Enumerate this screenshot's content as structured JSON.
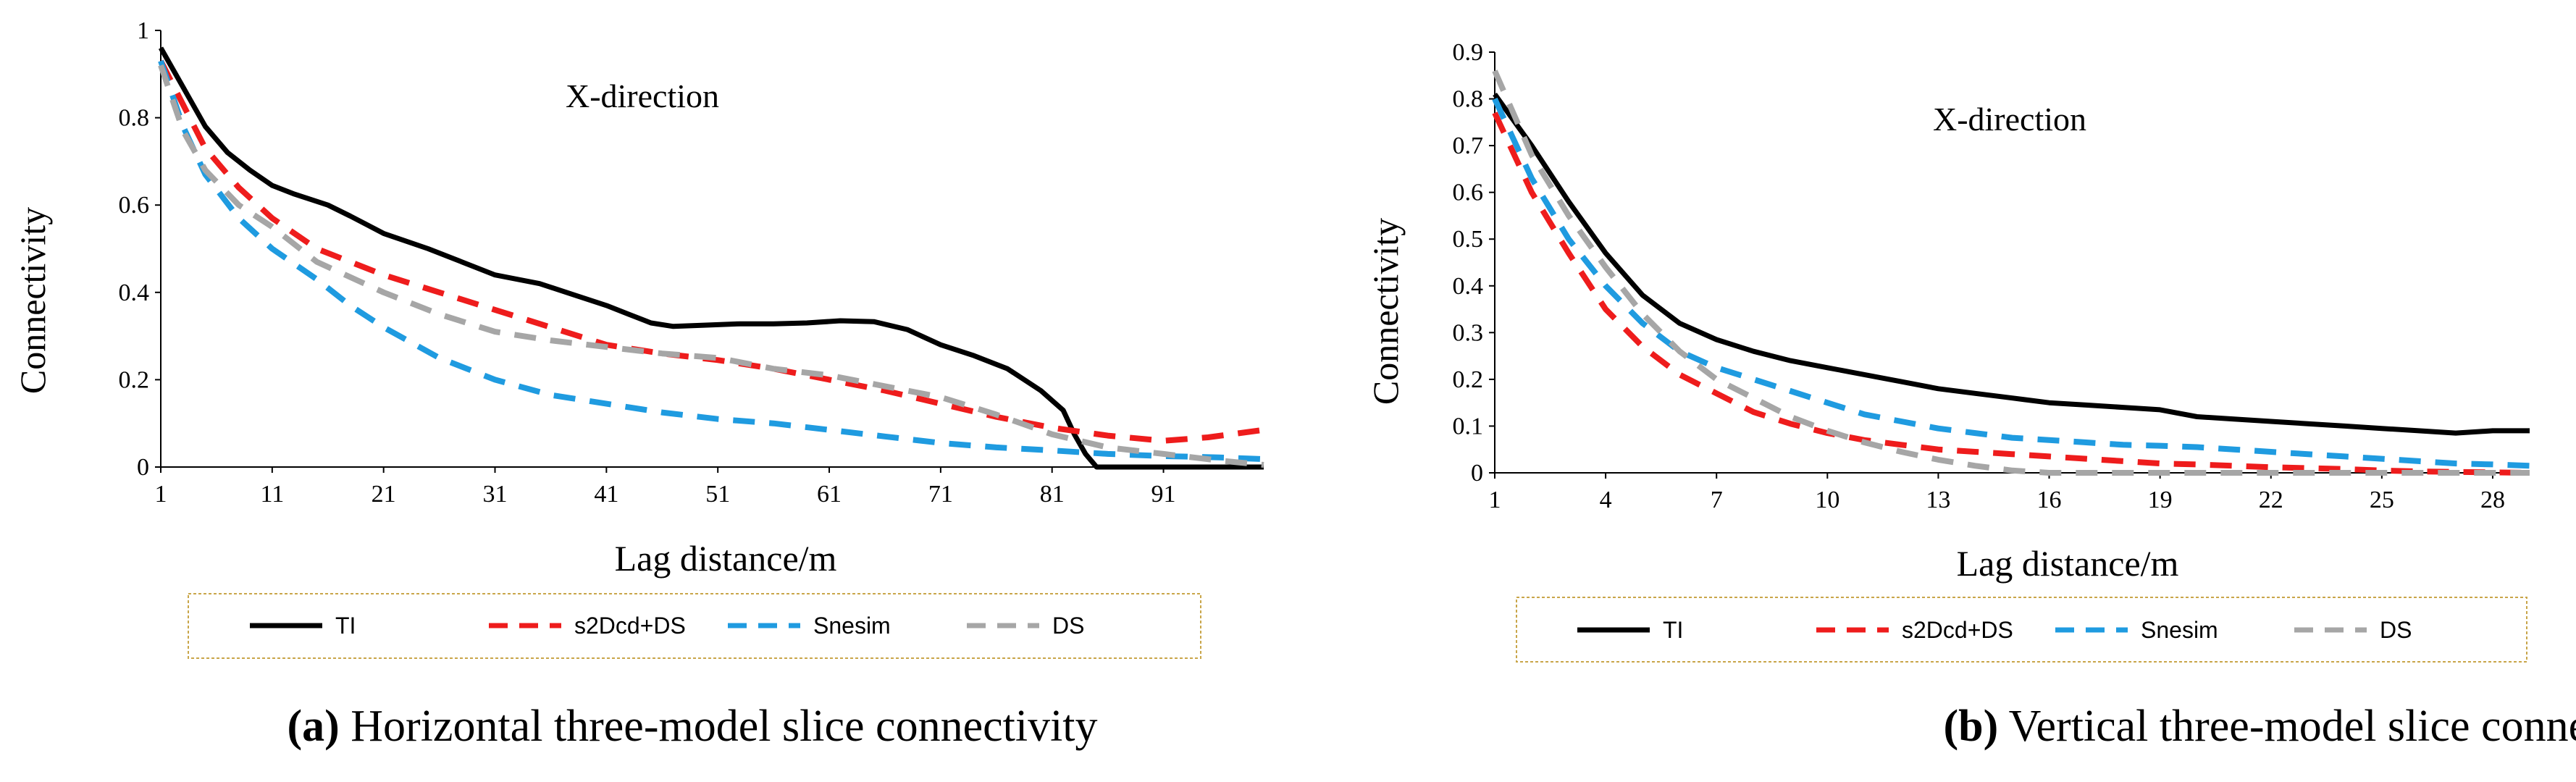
{
  "series_styles": {
    "TI": {
      "color": "#000000",
      "dash": "none"
    },
    "s2Dcd+DS": {
      "color": "#ee1c1c",
      "dash": "30,20"
    },
    "Snesim": {
      "color": "#1f9be0",
      "dash": "30,20"
    },
    "DS": {
      "color": "#a6a6a6",
      "dash": "30,20"
    }
  },
  "legend_border_color": "#c9a64a",
  "chart_data": [
    {
      "type": "line",
      "panel_letter": "(a)",
      "caption": " Horizontal three-model slice connectivity",
      "annotation": "X-direction",
      "xlabel": "Lag distance/m",
      "ylabel": "Connectivity",
      "xlim": [
        1,
        100
      ],
      "ylim": [
        0,
        1
      ],
      "xticks": [
        1,
        11,
        21,
        31,
        41,
        51,
        61,
        71,
        81,
        91
      ],
      "yticks": [
        "0",
        "0.2",
        "0.4",
        "0.6",
        "0.8",
        "1"
      ],
      "ytick_values": [
        0,
        0.2,
        0.4,
        0.6,
        0.8,
        1
      ],
      "legend": [
        "TI",
        "s2Dcd+DS",
        "Snesim",
        "DS"
      ],
      "series": [
        {
          "name": "TI",
          "points": [
            [
              1,
              0.96
            ],
            [
              3,
              0.87
            ],
            [
              5,
              0.78
            ],
            [
              7,
              0.72
            ],
            [
              9,
              0.68
            ],
            [
              11,
              0.645
            ],
            [
              13,
              0.625
            ],
            [
              16,
              0.6
            ],
            [
              18,
              0.575
            ],
            [
              21,
              0.535
            ],
            [
              25,
              0.5
            ],
            [
              28,
              0.47
            ],
            [
              31,
              0.44
            ],
            [
              35,
              0.42
            ],
            [
              38,
              0.395
            ],
            [
              41,
              0.37
            ],
            [
              43,
              0.35
            ],
            [
              45,
              0.33
            ],
            [
              47,
              0.322
            ],
            [
              50,
              0.325
            ],
            [
              53,
              0.328
            ],
            [
              56,
              0.328
            ],
            [
              59,
              0.33
            ],
            [
              62,
              0.335
            ],
            [
              65,
              0.333
            ],
            [
              68,
              0.315
            ],
            [
              71,
              0.28
            ],
            [
              74,
              0.255
            ],
            [
              77,
              0.225
            ],
            [
              80,
              0.175
            ],
            [
              82,
              0.13
            ],
            [
              83,
              0.075
            ],
            [
              84,
              0.03
            ],
            [
              85,
              0.0
            ],
            [
              86,
              0.0
            ],
            [
              90,
              0.0
            ],
            [
              100,
              0.0
            ]
          ]
        },
        {
          "name": "s2Dcd+DS",
          "points": [
            [
              1,
              0.93
            ],
            [
              3,
              0.83
            ],
            [
              5,
              0.73
            ],
            [
              8,
              0.64
            ],
            [
              11,
              0.57
            ],
            [
              15,
              0.5
            ],
            [
              21,
              0.44
            ],
            [
              26,
              0.4
            ],
            [
              31,
              0.36
            ],
            [
              36,
              0.32
            ],
            [
              41,
              0.28
            ],
            [
              46,
              0.26
            ],
            [
              51,
              0.245
            ],
            [
              56,
              0.225
            ],
            [
              61,
              0.2
            ],
            [
              66,
              0.175
            ],
            [
              71,
              0.145
            ],
            [
              76,
              0.115
            ],
            [
              81,
              0.09
            ],
            [
              86,
              0.072
            ],
            [
              91,
              0.06
            ],
            [
              95,
              0.068
            ],
            [
              100,
              0.085
            ]
          ]
        },
        {
          "name": "Snesim",
          "points": [
            [
              1,
              0.93
            ],
            [
              3,
              0.78
            ],
            [
              5,
              0.67
            ],
            [
              8,
              0.57
            ],
            [
              11,
              0.5
            ],
            [
              15,
              0.43
            ],
            [
              18,
              0.37
            ],
            [
              21,
              0.32
            ],
            [
              26,
              0.25
            ],
            [
              31,
              0.2
            ],
            [
              36,
              0.165
            ],
            [
              41,
              0.145
            ],
            [
              46,
              0.125
            ],
            [
              51,
              0.11
            ],
            [
              56,
              0.1
            ],
            [
              61,
              0.085
            ],
            [
              66,
              0.07
            ],
            [
              71,
              0.055
            ],
            [
              76,
              0.045
            ],
            [
              81,
              0.038
            ],
            [
              86,
              0.03
            ],
            [
              91,
              0.025
            ],
            [
              96,
              0.022
            ],
            [
              100,
              0.018
            ]
          ]
        },
        {
          "name": "DS",
          "points": [
            [
              1,
              0.92
            ],
            [
              3,
              0.77
            ],
            [
              5,
              0.68
            ],
            [
              8,
              0.6
            ],
            [
              11,
              0.55
            ],
            [
              15,
              0.47
            ],
            [
              21,
              0.4
            ],
            [
              26,
              0.35
            ],
            [
              31,
              0.31
            ],
            [
              36,
              0.29
            ],
            [
              41,
              0.275
            ],
            [
              46,
              0.26
            ],
            [
              51,
              0.25
            ],
            [
              56,
              0.225
            ],
            [
              61,
              0.21
            ],
            [
              66,
              0.185
            ],
            [
              71,
              0.16
            ],
            [
              76,
              0.12
            ],
            [
              81,
              0.075
            ],
            [
              86,
              0.045
            ],
            [
              91,
              0.03
            ],
            [
              96,
              0.015
            ],
            [
              100,
              0.005
            ]
          ]
        }
      ]
    },
    {
      "type": "line",
      "panel_letter": "(b)",
      "caption": " Vertical three-model slice connectivity",
      "annotation": "X-direction",
      "xlabel": "Lag distance/m",
      "ylabel": "Connectivity",
      "xlim": [
        1,
        29
      ],
      "ylim": [
        0,
        0.9
      ],
      "xticks": [
        1,
        4,
        7,
        10,
        13,
        16,
        19,
        22,
        25,
        28
      ],
      "yticks": [
        "0",
        "0.1",
        "0.2",
        "0.3",
        "0.4",
        "0.5",
        "0.6",
        "0.7",
        "0.8",
        "0.9"
      ],
      "ytick_values": [
        0,
        0.1,
        0.2,
        0.3,
        0.4,
        0.5,
        0.6,
        0.7,
        0.8,
        0.9
      ],
      "legend": [
        "TI",
        "s2Dcd+DS",
        "Snesim",
        "DS"
      ],
      "series": [
        {
          "name": "TI",
          "points": [
            [
              1,
              0.81
            ],
            [
              2,
              0.7
            ],
            [
              3,
              0.58
            ],
            [
              4,
              0.47
            ],
            [
              5,
              0.38
            ],
            [
              6,
              0.32
            ],
            [
              7,
              0.285
            ],
            [
              8,
              0.26
            ],
            [
              9,
              0.24
            ],
            [
              10,
              0.225
            ],
            [
              11,
              0.21
            ],
            [
              12,
              0.195
            ],
            [
              13,
              0.18
            ],
            [
              14,
              0.17
            ],
            [
              15,
              0.16
            ],
            [
              16,
              0.15
            ],
            [
              17,
              0.145
            ],
            [
              18,
              0.14
            ],
            [
              19,
              0.135
            ],
            [
              20,
              0.12
            ],
            [
              21,
              0.115
            ],
            [
              22,
              0.11
            ],
            [
              23,
              0.105
            ],
            [
              24,
              0.1
            ],
            [
              25,
              0.095
            ],
            [
              26,
              0.09
            ],
            [
              27,
              0.085
            ],
            [
              28,
              0.09
            ],
            [
              29,
              0.09
            ]
          ]
        },
        {
          "name": "s2Dcd+DS",
          "points": [
            [
              1,
              0.77
            ],
            [
              2,
              0.6
            ],
            [
              3,
              0.47
            ],
            [
              4,
              0.35
            ],
            [
              5,
              0.27
            ],
            [
              6,
              0.21
            ],
            [
              7,
              0.17
            ],
            [
              8,
              0.13
            ],
            [
              9,
              0.105
            ],
            [
              10,
              0.085
            ],
            [
              11,
              0.07
            ],
            [
              12,
              0.06
            ],
            [
              13,
              0.05
            ],
            [
              14,
              0.045
            ],
            [
              15,
              0.04
            ],
            [
              16,
              0.035
            ],
            [
              17,
              0.03
            ],
            [
              18,
              0.025
            ],
            [
              19,
              0.02
            ],
            [
              20,
              0.018
            ],
            [
              21,
              0.015
            ],
            [
              22,
              0.012
            ],
            [
              23,
              0.01
            ],
            [
              24,
              0.008
            ],
            [
              25,
              0.005
            ],
            [
              26,
              0.003
            ],
            [
              27,
              0.002
            ],
            [
              28,
              0.001
            ],
            [
              29,
              0.0
            ]
          ]
        },
        {
          "name": "Snesim",
          "points": [
            [
              1,
              0.8
            ],
            [
              2,
              0.63
            ],
            [
              3,
              0.5
            ],
            [
              4,
              0.4
            ],
            [
              5,
              0.32
            ],
            [
              6,
              0.26
            ],
            [
              7,
              0.225
            ],
            [
              8,
              0.2
            ],
            [
              9,
              0.175
            ],
            [
              10,
              0.15
            ],
            [
              11,
              0.125
            ],
            [
              12,
              0.11
            ],
            [
              13,
              0.095
            ],
            [
              14,
              0.085
            ],
            [
              15,
              0.075
            ],
            [
              16,
              0.07
            ],
            [
              17,
              0.065
            ],
            [
              18,
              0.06
            ],
            [
              19,
              0.058
            ],
            [
              20,
              0.055
            ],
            [
              21,
              0.05
            ],
            [
              22,
              0.045
            ],
            [
              23,
              0.04
            ],
            [
              24,
              0.035
            ],
            [
              25,
              0.03
            ],
            [
              26,
              0.025
            ],
            [
              27,
              0.02
            ],
            [
              28,
              0.018
            ],
            [
              29,
              0.015
            ]
          ]
        },
        {
          "name": "DS",
          "points": [
            [
              1,
              0.86
            ],
            [
              2,
              0.68
            ],
            [
              3,
              0.55
            ],
            [
              4,
              0.44
            ],
            [
              5,
              0.34
            ],
            [
              6,
              0.26
            ],
            [
              7,
              0.2
            ],
            [
              8,
              0.16
            ],
            [
              9,
              0.12
            ],
            [
              10,
              0.09
            ],
            [
              11,
              0.065
            ],
            [
              12,
              0.045
            ],
            [
              13,
              0.028
            ],
            [
              14,
              0.015
            ],
            [
              15,
              0.005
            ],
            [
              16,
              0.0
            ],
            [
              18,
              0.0
            ],
            [
              20,
              0.0
            ],
            [
              22,
              0.0
            ],
            [
              25,
              0.0
            ],
            [
              29,
              0.0
            ]
          ]
        }
      ]
    }
  ]
}
